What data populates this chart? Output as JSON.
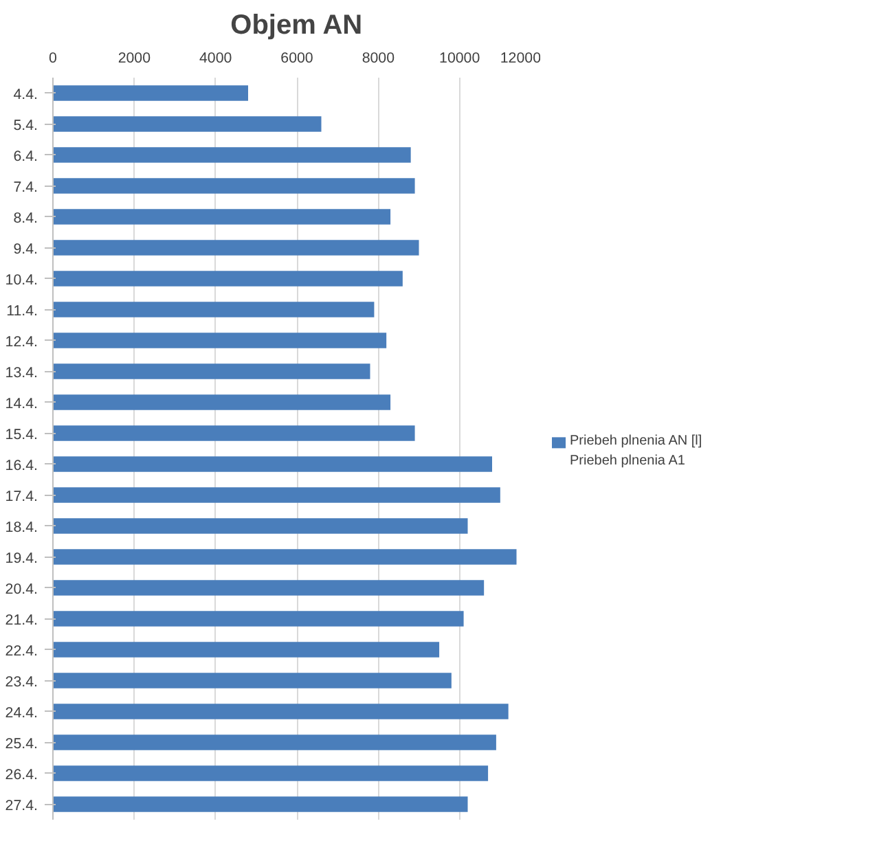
{
  "chart_data": {
    "type": "bar",
    "orientation": "horizontal",
    "title": "Objem AN",
    "categories": [
      "4.4.",
      "5.4.",
      "6.4.",
      "7.4.",
      "8.4.",
      "9.4.",
      "10.4.",
      "11.4.",
      "12.4.",
      "13.4.",
      "14.4.",
      "15.4.",
      "16.4.",
      "17.4.",
      "18.4.",
      "19.4.",
      "20.4.",
      "21.4.",
      "22.4.",
      "23.4.",
      "24.4.",
      "25.4.",
      "26.4.",
      "27.4."
    ],
    "series": [
      {
        "name": "Priebeh plnenia AN [l] Priebeh plnenia A1",
        "color": "#4a7ebb",
        "values": [
          4800,
          6600,
          8800,
          8900,
          8300,
          9000,
          8600,
          7900,
          8200,
          7800,
          8300,
          8900,
          10800,
          11000,
          10200,
          11400,
          10600,
          10100,
          9500,
          9800,
          11200,
          10900,
          10700,
          10200
        ]
      }
    ],
    "xlim": [
      0,
      12000
    ],
    "xticks": [
      0,
      2000,
      4000,
      6000,
      8000,
      10000,
      12000
    ],
    "grid": "x",
    "legend": "right"
  }
}
